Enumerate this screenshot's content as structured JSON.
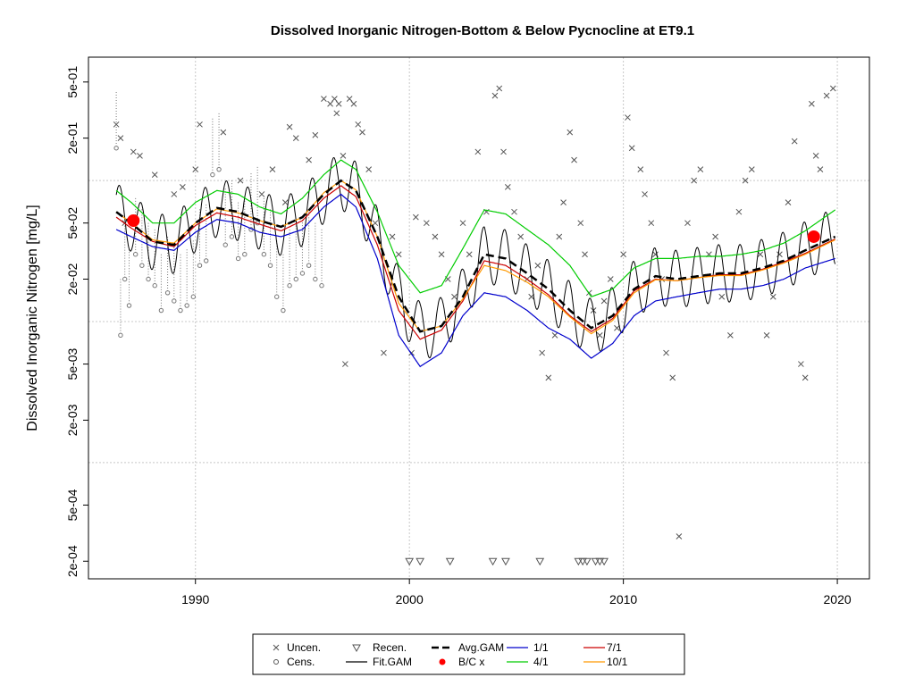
{
  "chart_data": {
    "type": "line",
    "title": "Dissolved Inorganic Nitrogen-Bottom & Below Pycnocline at ET9.1",
    "xlabel": "",
    "ylabel": "Dissolved Inorganic Nitrogen [mg/L]",
    "xlim": [
      1985,
      2021.5
    ],
    "ylim": [
      0.00015,
      0.75
    ],
    "ylog": true,
    "grid": true,
    "x_ticks": [
      1990,
      2000,
      2010,
      2020
    ],
    "x_tick_labels": [
      "1990",
      "2000",
      "2010",
      "2020"
    ],
    "y_ticks": [
      0.0002,
      0.0005,
      0.002,
      0.005,
      0.02,
      0.05,
      0.2,
      0.5
    ],
    "y_tick_labels": [
      "2e-04",
      "5e-04",
      "2e-03",
      "5e-03",
      "2e-02",
      "5e-02",
      "2e-01",
      "5e-01"
    ],
    "grid_y": [
      0.001,
      0.01,
      0.1
    ],
    "series": [
      {
        "name": "Avg.GAM",
        "color": "#000000",
        "dashed": true,
        "width": 2.5,
        "x": [
          1986.3,
          1987,
          1988,
          1989,
          1990,
          1991,
          1992,
          1993,
          1994,
          1995,
          1996,
          1996.8,
          1997.5,
          1998.5,
          1999.5,
          2000.5,
          2001.5,
          2002.5,
          2003.5,
          2004.5,
          2005.5,
          2006.5,
          2007.5,
          2008.5,
          2009.5,
          2010.5,
          2011.5,
          2012.5,
          2013.5,
          2014.5,
          2015.5,
          2016.5,
          2017.5,
          2018.5,
          2019.9
        ],
        "y": [
          0.06,
          0.05,
          0.037,
          0.035,
          0.05,
          0.064,
          0.06,
          0.052,
          0.047,
          0.055,
          0.08,
          0.1,
          0.085,
          0.04,
          0.015,
          0.0085,
          0.0093,
          0.015,
          0.03,
          0.028,
          0.022,
          0.017,
          0.012,
          0.009,
          0.011,
          0.017,
          0.021,
          0.02,
          0.021,
          0.022,
          0.022,
          0.024,
          0.027,
          0.032,
          0.04
        ]
      },
      {
        "name": "1/1",
        "color": "#0000cc",
        "dashed": false,
        "width": 1.2,
        "x": [
          1986.3,
          1987,
          1988,
          1989,
          1990,
          1991,
          1992,
          1993,
          1994,
          1995,
          1996,
          1996.8,
          1997.5,
          1998.5,
          1999.5,
          2000.5,
          2001.5,
          2002.5,
          2003.5,
          2004.5,
          2005.5,
          2006.5,
          2007.5,
          2008.5,
          2009.5,
          2010.5,
          2011.5,
          2012.5,
          2013.5,
          2014.5,
          2015.5,
          2016.5,
          2017.5,
          2018.5,
          2019.9
        ],
        "y": [
          0.045,
          0.04,
          0.034,
          0.032,
          0.043,
          0.053,
          0.05,
          0.043,
          0.04,
          0.045,
          0.065,
          0.08,
          0.065,
          0.028,
          0.008,
          0.0048,
          0.006,
          0.011,
          0.016,
          0.015,
          0.012,
          0.009,
          0.0075,
          0.0055,
          0.007,
          0.011,
          0.014,
          0.015,
          0.016,
          0.017,
          0.017,
          0.018,
          0.02,
          0.024,
          0.028
        ]
      },
      {
        "name": "4/1",
        "color": "#00cc00",
        "dashed": false,
        "width": 1.2,
        "x": [
          1986.3,
          1987,
          1988,
          1989,
          1990,
          1991,
          1992,
          1993,
          1994,
          1995,
          1996,
          1996.8,
          1997.5,
          1998.5,
          1999.5,
          2000.5,
          2001.5,
          2002.5,
          2003.5,
          2004.5,
          2005.5,
          2006.5,
          2007.5,
          2008.5,
          2009.5,
          2010.5,
          2011.5,
          2012.5,
          2013.5,
          2014.5,
          2015.5,
          2016.5,
          2017.5,
          2018.5,
          2019.9
        ],
        "y": [
          0.085,
          0.07,
          0.05,
          0.05,
          0.07,
          0.085,
          0.08,
          0.065,
          0.058,
          0.075,
          0.11,
          0.14,
          0.12,
          0.06,
          0.025,
          0.016,
          0.018,
          0.033,
          0.062,
          0.058,
          0.045,
          0.035,
          0.025,
          0.015,
          0.017,
          0.024,
          0.028,
          0.028,
          0.029,
          0.029,
          0.03,
          0.032,
          0.036,
          0.044,
          0.062
        ]
      },
      {
        "name": "7/1",
        "color": "#cc0000",
        "dashed": false,
        "width": 1.2,
        "x": [
          1986.3,
          1987,
          1988,
          1989,
          1990,
          1991,
          1992,
          1993,
          1994,
          1995,
          1996,
          1996.8,
          1997.5,
          1998.5,
          1999.5,
          2000.5,
          2001.5,
          2002.5,
          2003.5,
          2004.5,
          2005.5,
          2006.5,
          2007.5,
          2008.5,
          2009.5,
          2010.5,
          2011.5,
          2012.5,
          2013.5,
          2014.5,
          2015.5,
          2016.5,
          2017.5,
          2018.5,
          2019.9
        ],
        "y": [
          0.055,
          0.046,
          0.037,
          0.034,
          0.048,
          0.059,
          0.055,
          0.049,
          0.044,
          0.052,
          0.075,
          0.092,
          0.077,
          0.035,
          0.012,
          0.0075,
          0.0087,
          0.014,
          0.027,
          0.025,
          0.02,
          0.0155,
          0.011,
          0.0085,
          0.0105,
          0.0165,
          0.02,
          0.0195,
          0.0205,
          0.0215,
          0.0215,
          0.0235,
          0.0265,
          0.0305,
          0.0385
        ]
      },
      {
        "name": "10/1",
        "color": "#ff9900",
        "dashed": false,
        "width": 1.2,
        "x": [
          1986.3,
          1987,
          1988,
          1989,
          1990,
          1991,
          1992,
          1993,
          1994,
          1995,
          1996,
          1996.8,
          1997.5,
          1998.5,
          1999.5,
          2000.5,
          2001.5,
          2002.5,
          2003.5,
          2004.5,
          2005.5,
          2006.5,
          2007.5,
          2008.5,
          2009.5,
          2010.5,
          2011.5,
          2012.5,
          2013.5,
          2014.5,
          2015.5,
          2016.5,
          2017.5,
          2018.5,
          2019.9
        ],
        "y": [
          0.06,
          0.05,
          0.038,
          0.036,
          0.05,
          0.063,
          0.059,
          0.052,
          0.047,
          0.055,
          0.082,
          0.1,
          0.086,
          0.04,
          0.0135,
          0.0085,
          0.0093,
          0.0145,
          0.025,
          0.023,
          0.019,
          0.015,
          0.0108,
          0.0082,
          0.0102,
          0.016,
          0.0198,
          0.0195,
          0.0205,
          0.0212,
          0.0212,
          0.0232,
          0.026,
          0.03,
          0.038
        ]
      }
    ],
    "fit_gam": {
      "name": "Fit.GAM",
      "color": "#000000",
      "start": 1986.3,
      "end": 2019.9,
      "amplitude": 1.6
    },
    "bc_points": {
      "name": "B/C x",
      "color": "#ff0000",
      "x": [
        1987.1,
        2018.9
      ],
      "y": [
        0.052,
        0.04
      ]
    },
    "uncensored": {
      "name": "Uncen.",
      "x": [
        1986.3,
        1986.5,
        1986.7,
        1987.1,
        1987.4,
        1988.1,
        1989.0,
        1989.4,
        1990.0,
        1990.2,
        1991.3,
        1992.1,
        1993.1,
        1993.6,
        1994.2,
        1994.4,
        1994.7,
        1995.3,
        1995.6,
        1996.0,
        1996.3,
        1996.5,
        1996.6,
        1996.7,
        1996.9,
        1997.0,
        1997.2,
        1997.4,
        1997.6,
        1997.8,
        1998.1,
        1998.4,
        1998.8,
        1999.2,
        1999.5,
        2000.1,
        2000.3,
        2000.8,
        2001.2,
        2001.5,
        2001.8,
        2002.1,
        2002.5,
        2002.8,
        2003.2,
        2003.6,
        2004.0,
        2004.2,
        2004.4,
        2004.6,
        2004.9,
        2005.2,
        2005.5,
        2005.7,
        2006.0,
        2006.2,
        2006.5,
        2006.8,
        2007.0,
        2007.2,
        2007.5,
        2007.7,
        2008.0,
        2008.2,
        2008.4,
        2008.6,
        2008.9,
        2009.1,
        2009.4,
        2009.7,
        2010.0,
        2010.2,
        2010.4,
        2010.8,
        2011.0,
        2011.3,
        2011.5,
        2011.8,
        2012.0,
        2012.3,
        2012.6,
        2013.0,
        2013.3,
        2013.6,
        2014.0,
        2014.3,
        2014.6,
        2015.0,
        2015.4,
        2015.7,
        2016.0,
        2016.4,
        2016.7,
        2017.0,
        2017.3,
        2017.7,
        2018.0,
        2018.3,
        2018.5,
        2018.8,
        2019.0,
        2019.2,
        2019.5,
        2019.8
      ],
      "y": [
        0.25,
        0.2,
        0.05,
        0.16,
        0.15,
        0.11,
        0.08,
        0.09,
        0.12,
        0.25,
        0.22,
        0.1,
        0.08,
        0.12,
        0.07,
        0.24,
        0.2,
        0.14,
        0.21,
        0.38,
        0.35,
        0.38,
        0.3,
        0.35,
        0.15,
        0.005,
        0.38,
        0.35,
        0.25,
        0.22,
        0.12,
        0.05,
        0.006,
        0.04,
        0.03,
        0.006,
        0.055,
        0.05,
        0.04,
        0.03,
        0.02,
        0.015,
        0.05,
        0.03,
        0.16,
        0.06,
        0.4,
        0.45,
        0.16,
        0.09,
        0.06,
        0.04,
        0.02,
        0.015,
        0.025,
        0.006,
        0.004,
        0.008,
        0.04,
        0.07,
        0.22,
        0.14,
        0.05,
        0.03,
        0.016,
        0.012,
        0.008,
        0.014,
        0.02,
        0.009,
        0.03,
        0.28,
        0.17,
        0.12,
        0.08,
        0.05,
        0.03,
        0.02,
        0.006,
        0.004,
        0.0003,
        0.05,
        0.1,
        0.12,
        0.03,
        0.04,
        0.015,
        0.008,
        0.06,
        0.1,
        0.12,
        0.03,
        0.008,
        0.015,
        0.03,
        0.07,
        0.19,
        0.005,
        0.004,
        0.35,
        0.15,
        0.12,
        0.4,
        0.45
      ]
    },
    "censored": {
      "name": "Cens.",
      "x": [
        1986.3,
        1986.5,
        1986.7,
        1986.9,
        1987.2,
        1987.5,
        1987.8,
        1988.1,
        1988.4,
        1988.7,
        1989.0,
        1989.3,
        1989.6,
        1989.9,
        1990.2,
        1990.5,
        1990.8,
        1991.1,
        1991.4,
        1991.7,
        1992.0,
        1992.3,
        1992.6,
        1992.9,
        1993.2,
        1993.5,
        1993.8,
        1994.1,
        1994.4,
        1994.7,
        1995.0,
        1995.3,
        1995.6,
        1995.9
      ],
      "y": [
        0.17,
        0.008,
        0.02,
        0.013,
        0.03,
        0.025,
        0.02,
        0.018,
        0.012,
        0.016,
        0.014,
        0.012,
        0.013,
        0.015,
        0.025,
        0.027,
        0.11,
        0.12,
        0.035,
        0.04,
        0.028,
        0.03,
        0.045,
        0.05,
        0.03,
        0.025,
        0.015,
        0.012,
        0.018,
        0.02,
        0.022,
        0.025,
        0.02,
        0.018
      ]
    },
    "recensored": {
      "name": "Recen.",
      "x": [
        2000.0,
        2000.5,
        2001.9,
        2003.9,
        2004.5,
        2006.1,
        2007.9,
        2008.1,
        2008.3,
        2008.7,
        2008.9,
        2009.1
      ],
      "y": [
        0.0002,
        0.0002,
        0.0002,
        0.0002,
        0.0002,
        0.0002,
        0.0002,
        0.0002,
        0.0002,
        0.0002,
        0.0002,
        0.0002
      ]
    },
    "legend": {
      "placement": "bottom-center",
      "items": [
        {
          "label": "Uncen.",
          "symbol": "x"
        },
        {
          "label": "Cens.",
          "symbol": "o"
        },
        {
          "label": "Recen.",
          "symbol": "triangle"
        },
        {
          "label": "Fit.GAM",
          "symbol": "line",
          "color": "#000000"
        },
        {
          "label": "Avg.GAM",
          "symbol": "dash",
          "color": "#000000"
        },
        {
          "label": "B/C x",
          "symbol": "dot",
          "color": "#ff0000"
        },
        {
          "label": "1/1",
          "symbol": "line",
          "color": "#0000cc"
        },
        {
          "label": "4/1",
          "symbol": "line",
          "color": "#00cc00"
        },
        {
          "label": "7/1",
          "symbol": "line",
          "color": "#cc0000"
        },
        {
          "label": "10/1",
          "symbol": "line",
          "color": "#ff9900"
        }
      ]
    }
  }
}
